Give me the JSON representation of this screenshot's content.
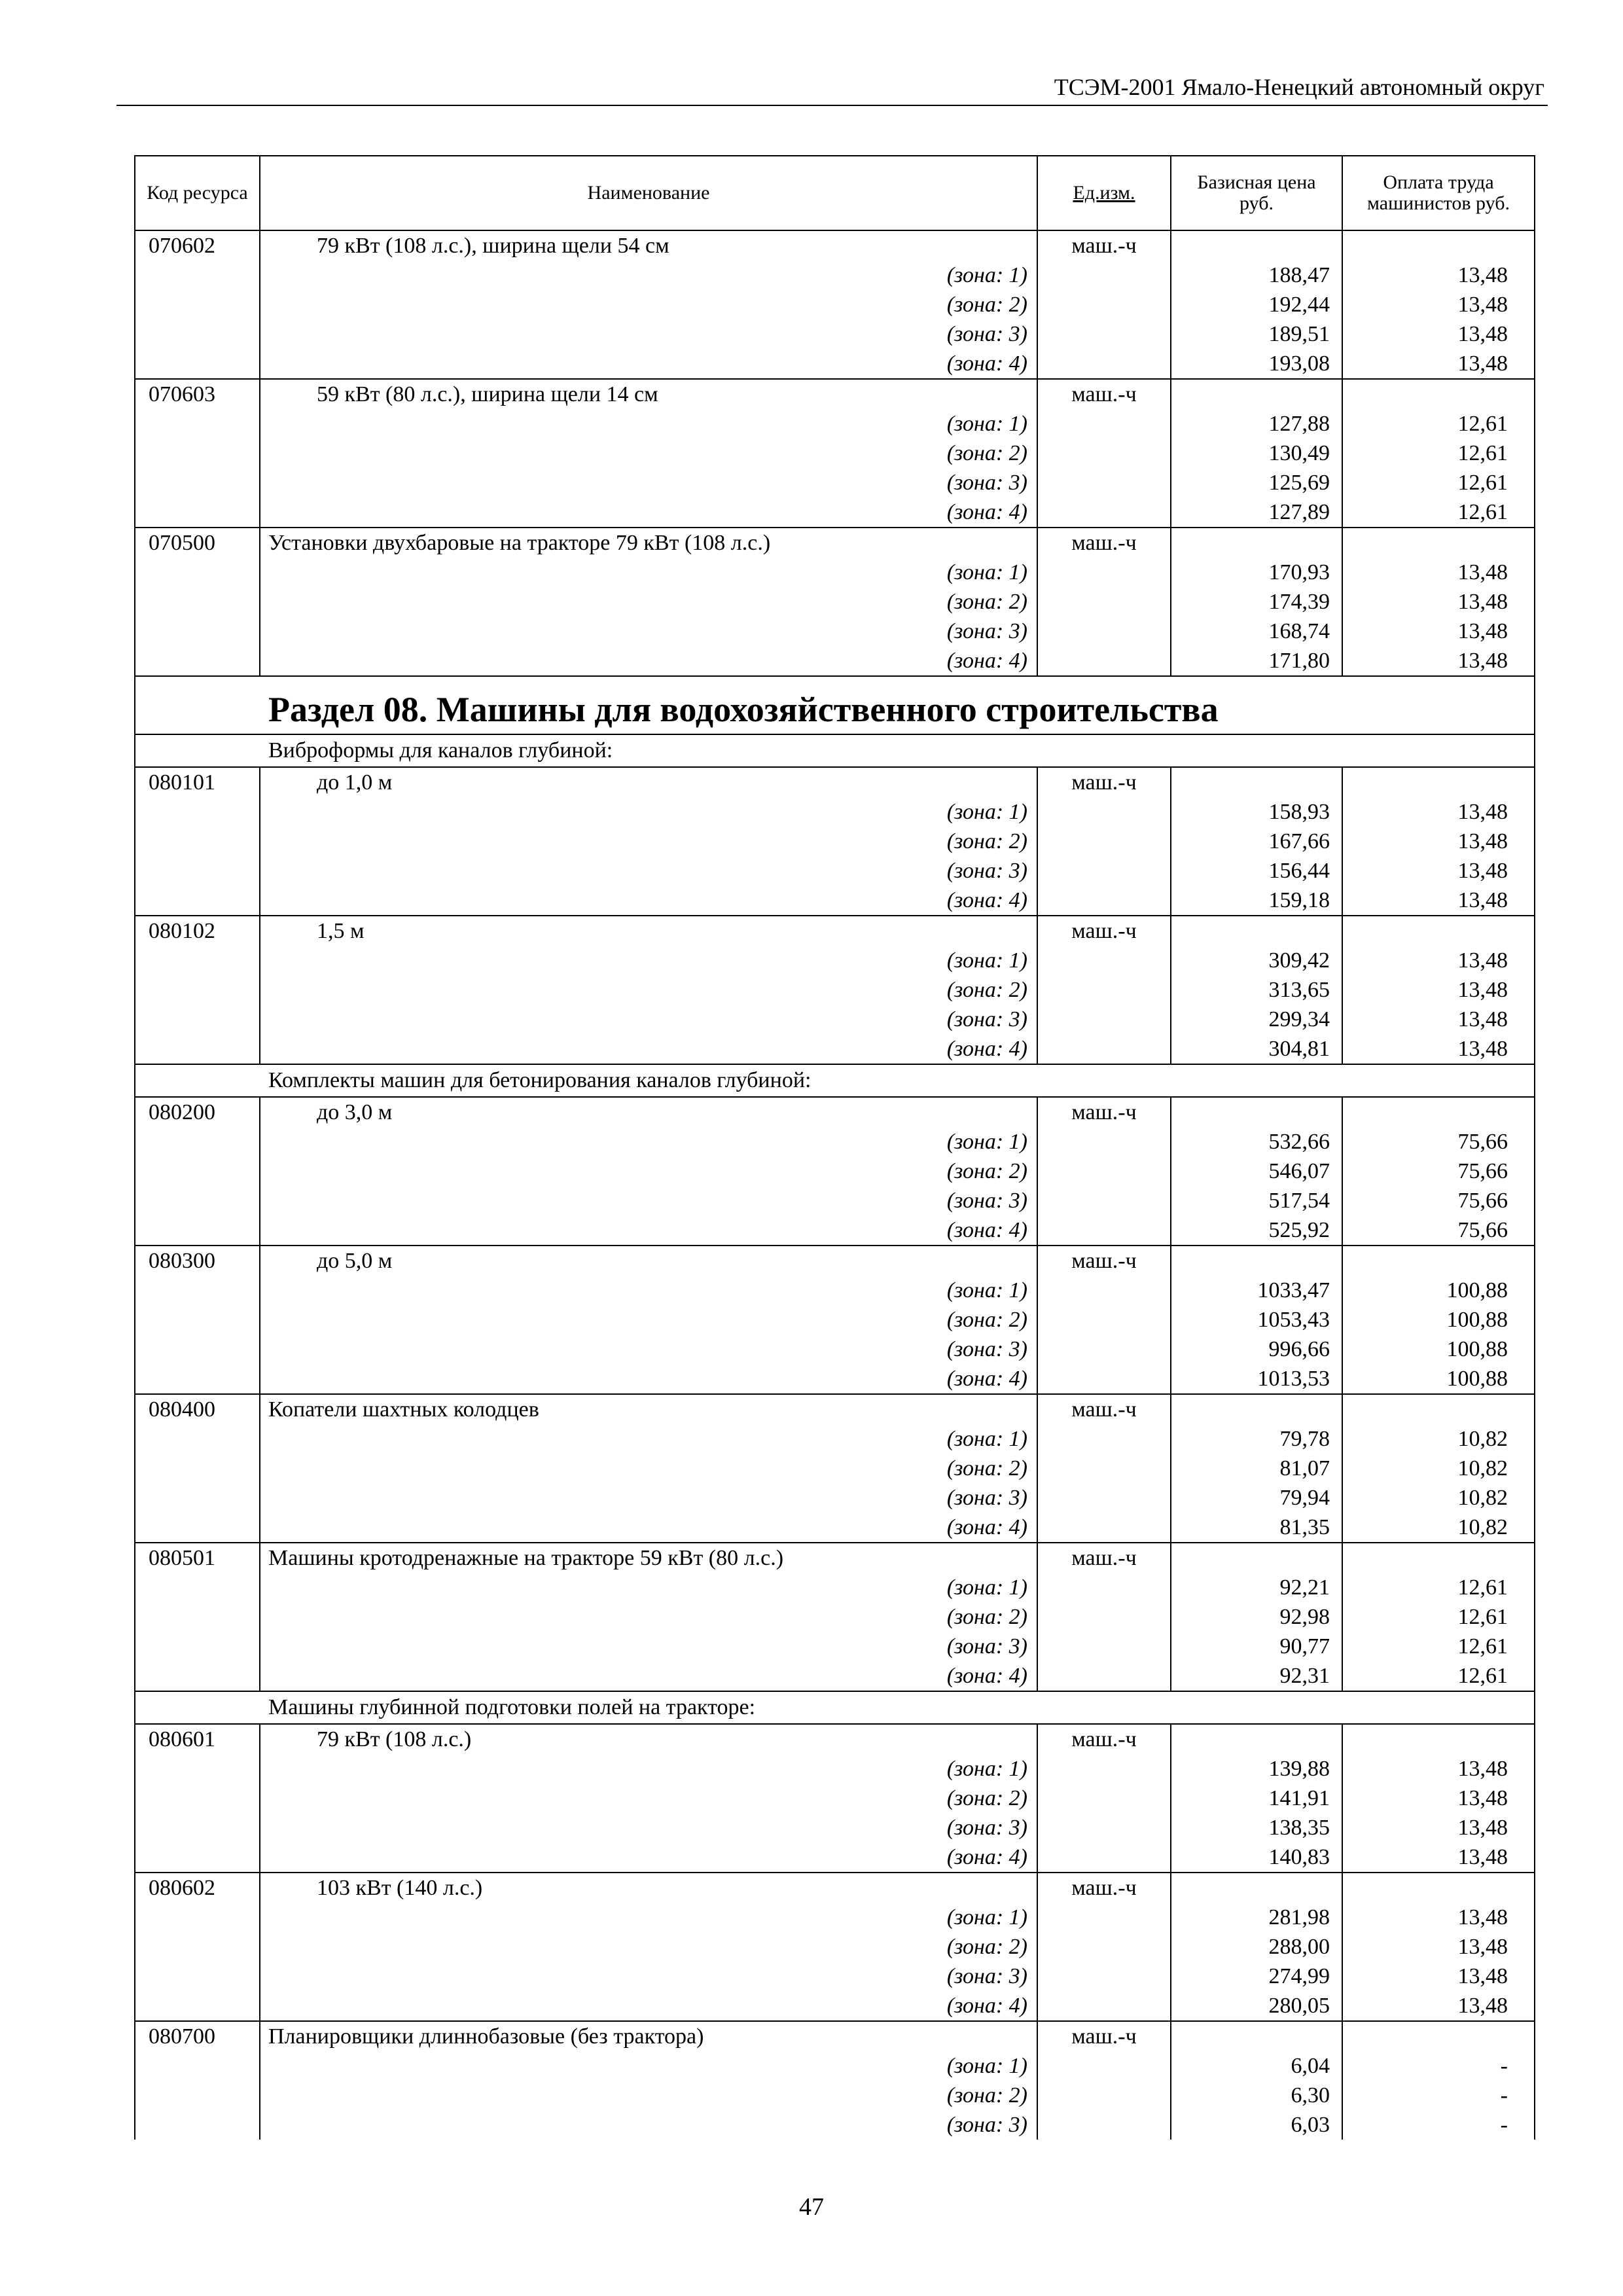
{
  "header": {
    "title": "ТСЭМ-2001 Ямало-Ненецкий автономный округ"
  },
  "table": {
    "columns": {
      "code": "Код ресурса",
      "name": "Наименование",
      "unit": "Ед.изм.",
      "price": "Базисная цена руб.",
      "labor": "Оплата труда машинистов руб."
    },
    "blocks": [
      {
        "type": "item",
        "code": "070602",
        "name": "79 кВт (108 л.с.), ширина щели 54 см",
        "indent": true,
        "unit": "маш.-ч",
        "zones": [
          {
            "label": "(зона: 1)",
            "price": "188,47",
            "labor": "13,48"
          },
          {
            "label": "(зона: 2)",
            "price": "192,44",
            "labor": "13,48"
          },
          {
            "label": "(зона: 3)",
            "price": "189,51",
            "labor": "13,48"
          },
          {
            "label": "(зона: 4)",
            "price": "193,08",
            "labor": "13,48"
          }
        ]
      },
      {
        "type": "item",
        "code": "070603",
        "name": "59 кВт (80 л.с.), ширина щели 14 см",
        "indent": true,
        "unit": "маш.-ч",
        "zones": [
          {
            "label": "(зона: 1)",
            "price": "127,88",
            "labor": "12,61"
          },
          {
            "label": "(зона: 2)",
            "price": "130,49",
            "labor": "12,61"
          },
          {
            "label": "(зона: 3)",
            "price": "125,69",
            "labor": "12,61"
          },
          {
            "label": "(зона: 4)",
            "price": "127,89",
            "labor": "12,61"
          }
        ]
      },
      {
        "type": "item",
        "code": "070500",
        "name": "Установки двухбаровые на тракторе 79 кВт (108 л.с.)",
        "indent": false,
        "unit": "маш.-ч",
        "zones": [
          {
            "label": "(зона: 1)",
            "price": "170,93",
            "labor": "13,48"
          },
          {
            "label": "(зона: 2)",
            "price": "174,39",
            "labor": "13,48"
          },
          {
            "label": "(зона: 3)",
            "price": "168,74",
            "labor": "13,48"
          },
          {
            "label": "(зона: 4)",
            "price": "171,80",
            "labor": "13,48"
          }
        ]
      },
      {
        "type": "section",
        "text": "Раздел 08. Машины для водохозяйственного строительства"
      },
      {
        "type": "group",
        "text": "Виброформы для каналов глубиной:"
      },
      {
        "type": "item",
        "code": "080101",
        "name": "до 1,0 м",
        "indent": true,
        "unit": "маш.-ч",
        "zones": [
          {
            "label": "(зона: 1)",
            "price": "158,93",
            "labor": "13,48"
          },
          {
            "label": "(зона: 2)",
            "price": "167,66",
            "labor": "13,48"
          },
          {
            "label": "(зона: 3)",
            "price": "156,44",
            "labor": "13,48"
          },
          {
            "label": "(зона: 4)",
            "price": "159,18",
            "labor": "13,48"
          }
        ]
      },
      {
        "type": "item",
        "code": "080102",
        "name": "1,5 м",
        "indent": true,
        "unit": "маш.-ч",
        "zones": [
          {
            "label": "(зона: 1)",
            "price": "309,42",
            "labor": "13,48"
          },
          {
            "label": "(зона: 2)",
            "price": "313,65",
            "labor": "13,48"
          },
          {
            "label": "(зона: 3)",
            "price": "299,34",
            "labor": "13,48"
          },
          {
            "label": "(зона: 4)",
            "price": "304,81",
            "labor": "13,48"
          }
        ]
      },
      {
        "type": "group",
        "text": "Комплекты машин для бетонирования каналов глубиной:"
      },
      {
        "type": "item",
        "code": "080200",
        "name": "до 3,0 м",
        "indent": true,
        "unit": "маш.-ч",
        "zones": [
          {
            "label": "(зона: 1)",
            "price": "532,66",
            "labor": "75,66"
          },
          {
            "label": "(зона: 2)",
            "price": "546,07",
            "labor": "75,66"
          },
          {
            "label": "(зона: 3)",
            "price": "517,54",
            "labor": "75,66"
          },
          {
            "label": "(зона: 4)",
            "price": "525,92",
            "labor": "75,66"
          }
        ]
      },
      {
        "type": "item",
        "code": "080300",
        "name": "до 5,0 м",
        "indent": true,
        "unit": "маш.-ч",
        "zones": [
          {
            "label": "(зона: 1)",
            "price": "1033,47",
            "labor": "100,88"
          },
          {
            "label": "(зона: 2)",
            "price": "1053,43",
            "labor": "100,88"
          },
          {
            "label": "(зона: 3)",
            "price": "996,66",
            "labor": "100,88"
          },
          {
            "label": "(зона: 4)",
            "price": "1013,53",
            "labor": "100,88"
          }
        ]
      },
      {
        "type": "item",
        "code": "080400",
        "name": "Копатели шахтных колодцев",
        "indent": false,
        "unit": "маш.-ч",
        "zones": [
          {
            "label": "(зона: 1)",
            "price": "79,78",
            "labor": "10,82"
          },
          {
            "label": "(зона: 2)",
            "price": "81,07",
            "labor": "10,82"
          },
          {
            "label": "(зона: 3)",
            "price": "79,94",
            "labor": "10,82"
          },
          {
            "label": "(зона: 4)",
            "price": "81,35",
            "labor": "10,82"
          }
        ]
      },
      {
        "type": "item",
        "code": "080501",
        "name": "Машины кротодренажные на тракторе 59 кВт (80 л.с.)",
        "indent": false,
        "unit": "маш.-ч",
        "zones": [
          {
            "label": "(зона: 1)",
            "price": "92,21",
            "labor": "12,61"
          },
          {
            "label": "(зона: 2)",
            "price": "92,98",
            "labor": "12,61"
          },
          {
            "label": "(зона: 3)",
            "price": "90,77",
            "labor": "12,61"
          },
          {
            "label": "(зона: 4)",
            "price": "92,31",
            "labor": "12,61"
          }
        ]
      },
      {
        "type": "group",
        "text": "Машины глубинной подготовки полей на тракторе:"
      },
      {
        "type": "item",
        "code": "080601",
        "name": "79 кВт (108 л.с.)",
        "indent": true,
        "unit": "маш.-ч",
        "zones": [
          {
            "label": "(зона: 1)",
            "price": "139,88",
            "labor": "13,48"
          },
          {
            "label": "(зона: 2)",
            "price": "141,91",
            "labor": "13,48"
          },
          {
            "label": "(зона: 3)",
            "price": "138,35",
            "labor": "13,48"
          },
          {
            "label": "(зона: 4)",
            "price": "140,83",
            "labor": "13,48"
          }
        ]
      },
      {
        "type": "item",
        "code": "080602",
        "name": "103 кВт (140 л.с.)",
        "indent": true,
        "unit": "маш.-ч",
        "zones": [
          {
            "label": "(зона: 1)",
            "price": "281,98",
            "labor": "13,48"
          },
          {
            "label": "(зона: 2)",
            "price": "288,00",
            "labor": "13,48"
          },
          {
            "label": "(зона: 3)",
            "price": "274,99",
            "labor": "13,48"
          },
          {
            "label": "(зона: 4)",
            "price": "280,05",
            "labor": "13,48"
          }
        ]
      },
      {
        "type": "item",
        "code": "080700",
        "name": "Планировщики длиннобазовые (без трактора)",
        "indent": false,
        "unit": "маш.-ч",
        "zones": [
          {
            "label": "(зона: 1)",
            "price": "6,04",
            "labor": "-"
          },
          {
            "label": "(зона: 2)",
            "price": "6,30",
            "labor": "-"
          },
          {
            "label": "(зона: 3)",
            "price": "6,03",
            "labor": "-"
          }
        ]
      }
    ]
  },
  "footer": {
    "page_number": "47"
  }
}
